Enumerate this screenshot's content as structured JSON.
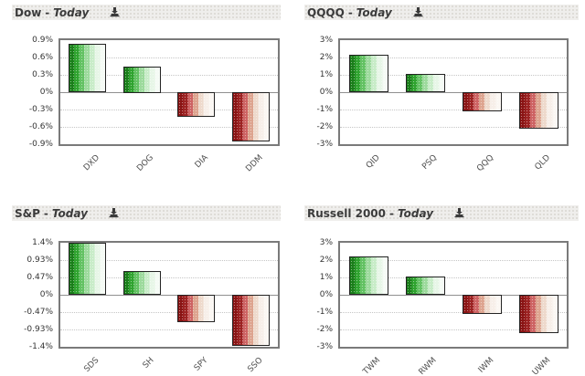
{
  "ui": {
    "separator": "-",
    "download_icon": "download-icon"
  },
  "colors": {
    "positive_base": "#2fa32f",
    "negative_base": "#9c2222",
    "header_background": "#efeeec",
    "plot_border": "#7a7a7a",
    "title_text": "#3b3b3b"
  },
  "chart_data": [
    {
      "type": "bar",
      "title": "Dow",
      "subtitle": "Today",
      "categories": [
        "DXD",
        "DOG",
        "DIA",
        "DDM"
      ],
      "values": [
        0.84,
        0.45,
        -0.43,
        -0.85
      ],
      "unit": "%",
      "ylim": [
        -0.9,
        0.9
      ],
      "yticks": [
        0.9,
        0.6,
        0.3,
        0,
        -0.3,
        -0.6,
        -0.9
      ],
      "ytick_labels": [
        "0.9%",
        "0.6%",
        "0.3%",
        "0%",
        "-0.3%",
        "-0.6%",
        "-0.9%"
      ],
      "grid": true,
      "legend": false
    },
    {
      "type": "bar",
      "title": "QQQQ",
      "subtitle": "Today",
      "categories": [
        "QID",
        "PSQ",
        "QQQ",
        "QLD"
      ],
      "values": [
        2.15,
        1.05,
        -1.1,
        -2.1
      ],
      "unit": "%",
      "ylim": [
        -3,
        3
      ],
      "yticks": [
        3,
        2,
        1,
        0,
        -1,
        -2,
        -3
      ],
      "ytick_labels": [
        "3%",
        "2%",
        "1%",
        "0%",
        "-1%",
        "-2%",
        "-3%"
      ],
      "grid": true,
      "legend": false
    },
    {
      "type": "bar",
      "title": "S&P",
      "subtitle": "Today",
      "categories": [
        "SDS",
        "SH",
        "SPY",
        "SSO"
      ],
      "values": [
        1.4,
        0.64,
        -0.73,
        -1.38
      ],
      "unit": "%",
      "ylim": [
        -1.4,
        1.4
      ],
      "yticks": [
        1.4,
        0.93,
        0.47,
        0,
        -0.47,
        -0.93,
        -1.4
      ],
      "ytick_labels": [
        "1.4%",
        "0.93%",
        "0.47%",
        "0%",
        "-0.47%",
        "-0.93%",
        "-1.4%"
      ],
      "grid": true,
      "legend": false
    },
    {
      "type": "bar",
      "title": "Russell 2000",
      "subtitle": "Today",
      "categories": [
        "TWM",
        "RWM",
        "IWM",
        "UWM"
      ],
      "values": [
        2.2,
        1.05,
        -1.1,
        -2.2
      ],
      "unit": "%",
      "ylim": [
        -3,
        3
      ],
      "yticks": [
        3,
        2,
        1,
        0,
        -1,
        -2,
        -3
      ],
      "ytick_labels": [
        "3%",
        "2%",
        "1%",
        "0%",
        "-1%",
        "-2%",
        "-3%"
      ],
      "grid": true,
      "legend": false
    }
  ]
}
